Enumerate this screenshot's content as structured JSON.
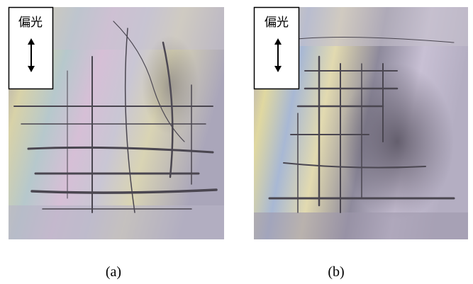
{
  "panels": [
    {
      "polarizer_label": "偏光",
      "caption": "(a)"
    },
    {
      "polarizer_label": "偏光",
      "caption": "(b)"
    }
  ]
}
